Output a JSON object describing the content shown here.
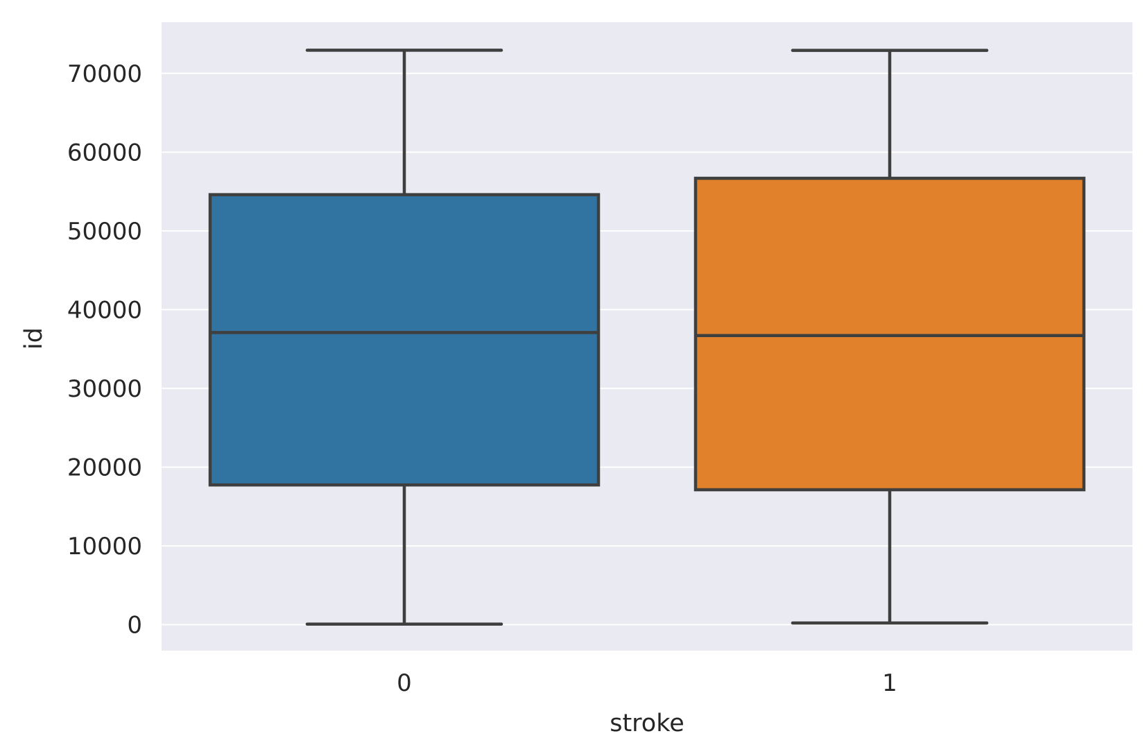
{
  "chart_data": {
    "type": "box",
    "xlabel": "stroke",
    "ylabel": "id",
    "categories": [
      "0",
      "1"
    ],
    "ylim": [
      -3300,
      76500
    ],
    "yticks": [
      0,
      10000,
      20000,
      30000,
      40000,
      50000,
      60000,
      70000
    ],
    "ytick_labels": [
      "0",
      "10000",
      "20000",
      "30000",
      "40000",
      "50000",
      "60000",
      "70000"
    ],
    "grid": true,
    "legend": "none",
    "colors": {
      "background": "#eaeaf2",
      "grid": "#ffffff",
      "outline": "#3f3f3f",
      "text": "#262626"
    },
    "boxes": [
      {
        "category": "0",
        "color": "#3274a1",
        "whisker_low": 67,
        "q1": 17740,
        "median": 37100,
        "q3": 54600,
        "whisker_high": 72940
      },
      {
        "category": "1",
        "color": "#e1812c",
        "whisker_low": 210,
        "q1": 17130,
        "median": 36710,
        "q3": 56680,
        "whisker_high": 72920
      }
    ]
  }
}
